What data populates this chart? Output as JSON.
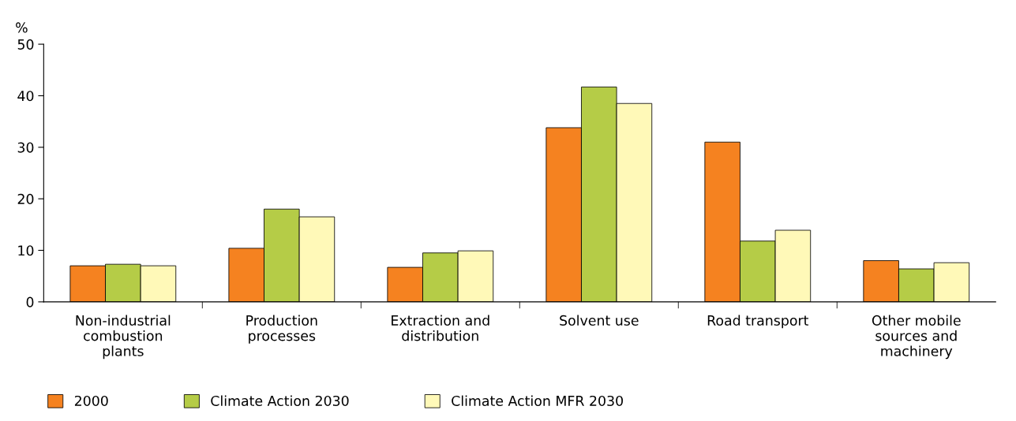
{
  "chart_data": {
    "type": "bar",
    "ylabel": "%",
    "categories": [
      "Non-industrial\ncombustion\nplants",
      "Production\nprocesses",
      "Extraction and\ndistribution",
      "Solvent use",
      "Road transport",
      "Other mobile\nsources and\nmachinery"
    ],
    "series": [
      {
        "name": "2000",
        "color": "#f58220",
        "values": [
          7.0,
          10.4,
          6.7,
          33.8,
          31.0,
          8.0
        ]
      },
      {
        "name": "Climate Action 2030",
        "color": "#b5cc47",
        "values": [
          7.3,
          18.0,
          9.5,
          41.7,
          11.8,
          6.4
        ]
      },
      {
        "name": "Climate Action MFR 2030",
        "color": "#fff9b8",
        "values": [
          7.0,
          16.5,
          9.9,
          38.5,
          13.9,
          7.6
        ]
      }
    ],
    "ylim": [
      0,
      50
    ],
    "yticks": [
      0,
      10,
      20,
      30,
      40,
      50
    ],
    "grid": false,
    "legend": "bottom"
  }
}
